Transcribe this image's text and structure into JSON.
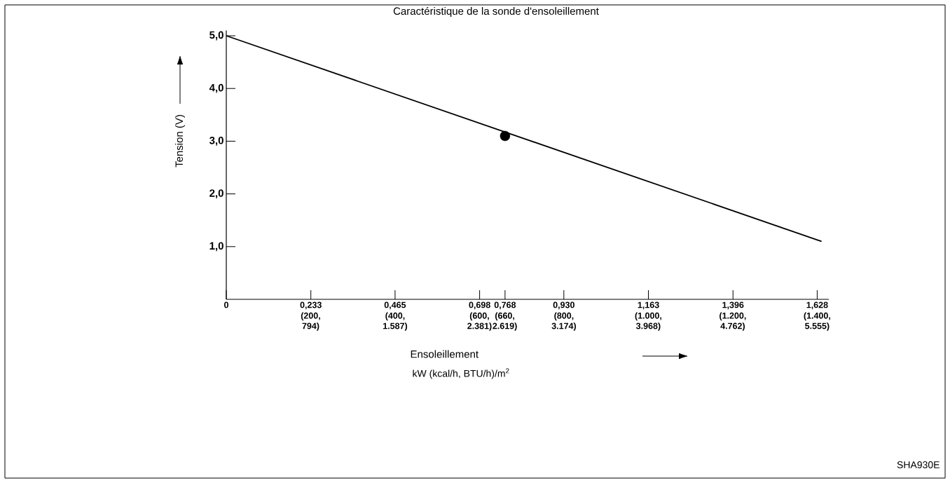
{
  "chart_data": {
    "type": "line",
    "title": "Caractéristique de la sonde d'ensoleillement",
    "xlabel": "Ensoleillement",
    "ylabel": "Tension (V)",
    "annotations": [
      "kW (kcal/h, BTU/h)/m$^{2}$",
      "SHA930E",
      "794)",
      "1.587)",
      "2.381)",
      "2.619)",
      "3.174)",
      "3.968)",
      "4.762)",
      "5.555)"
    ],
    "xlim": [
      0,
      1.66
    ],
    "ylim": [
      0,
      5.1
    ],
    "xticks": [
      {
        "value": 0,
        "label": "0"
      },
      {
        "value": 0.233,
        "label": "0,233"
      },
      {
        "value": 0.465,
        "label": "0,465"
      },
      {
        "value": 0.698,
        "label": "0,698"
      },
      {
        "value": 0.768,
        "label": "0,768"
      },
      {
        "value": 0.93,
        "label": "0,930"
      },
      {
        "value": 1.163,
        "label": "1,163"
      },
      {
        "value": 1.396,
        "label": "1,396"
      },
      {
        "value": 1.628,
        "label": "1,628"
      }
    ],
    "x2lim": [
      0,
      1427.6
    ],
    "x2ticks": [
      {
        "value": 200,
        "label": "(200,"
      },
      {
        "value": 400,
        "label": "(400,"
      },
      {
        "value": 600,
        "label": "(600,"
      },
      {
        "value": 660,
        "label": "(660,"
      },
      {
        "value": 800,
        "label": "(800,"
      },
      {
        "value": 1000,
        "label": "(1.000,"
      },
      {
        "value": 1200,
        "label": "(1.200,"
      },
      {
        "value": 1400,
        "label": "(1.400,"
      }
    ],
    "yticks": [
      {
        "value": 1,
        "label": "1,0"
      },
      {
        "value": 2,
        "label": "2,0"
      },
      {
        "value": 3,
        "label": "3,0"
      },
      {
        "value": 4,
        "label": "4,0"
      },
      {
        "value": 5,
        "label": "5,0"
      }
    ],
    "series": [
      {
        "type": "line",
        "color": "#000000",
        "marker": "none",
        "x": [
          0,
          1.64
        ],
        "values": [
          5.0,
          1.1
        ]
      },
      {
        "type": "scatter",
        "color": "#000000",
        "marker": "circle",
        "x": [
          0.768
        ],
        "values": [
          3.1
        ]
      }
    ]
  }
}
